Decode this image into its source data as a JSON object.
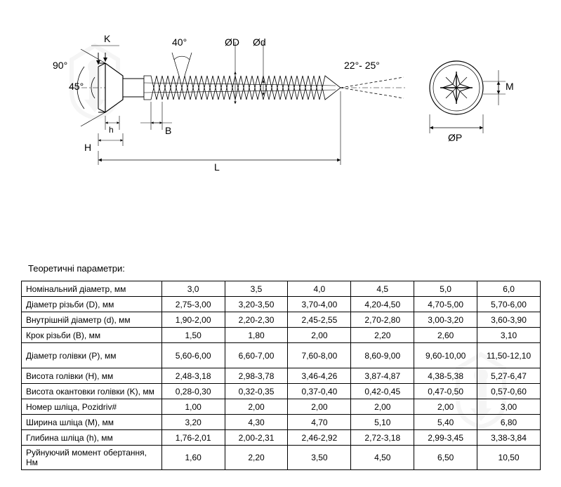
{
  "diagram": {
    "labels": {
      "angle_head": "90°",
      "angle_chamfer": "45°",
      "K": "K",
      "angle_thread": "40°",
      "OD": "ØD",
      "od": "Ød",
      "tip_angle": "22°- 25°",
      "M": "M",
      "OP": "ØP",
      "h": "h",
      "H": "H",
      "B": "B",
      "L": "L"
    },
    "colors": {
      "line": "#000000",
      "hatch": "#777777",
      "bg": "#ffffff"
    }
  },
  "table": {
    "title": "Теоретичні параметри:",
    "rows": [
      {
        "label": "Номінальний діаметр, мм",
        "values": [
          "3,0",
          "3,5",
          "4,0",
          "4,5",
          "5,0",
          "6,0"
        ]
      },
      {
        "label": "Діаметр різьби (D), мм",
        "values": [
          "2,75-3,00",
          "3,20-3,50",
          "3,70-4,00",
          "4,20-4,50",
          "4,70-5,00",
          "5,70-6,00"
        ]
      },
      {
        "label": "Внутрішній діаметр (d), мм",
        "values": [
          "1,90-2,00",
          "2,20-2,30",
          "2,45-2,55",
          "2,70-2,80",
          "3,00-3,20",
          "3,60-3,90"
        ]
      },
      {
        "label": "Крок різьби (B), мм",
        "values": [
          "1,50",
          "1,80",
          "2,00",
          "2,20",
          "2,60",
          "3,10"
        ]
      },
      {
        "label": "Діаметр голівки (P), мм",
        "values": [
          "5,60-6,00",
          "6,60-7,00",
          "7,60-8,00",
          "8,60-9,00",
          "9,60-10,00",
          "11,50-12,10"
        ],
        "tall": true
      },
      {
        "label": "Висота голівки (H), мм",
        "values": [
          "2,48-3,18",
          "2,98-3,78",
          "3,46-4,26",
          "3,87-4,87",
          "4,38-5,38",
          "5,27-6,47"
        ]
      },
      {
        "label": "Висота окантовки голівки (K), мм",
        "values": [
          "0,28-0,30",
          "0,32-0,35",
          "0,37-0,40",
          "0,42-0,45",
          "0,47-0,50",
          "0,57-0,60"
        ]
      },
      {
        "label": "Номер шліца, Pozidriv#",
        "values": [
          "1,00",
          "2,00",
          "2,00",
          "2,00",
          "2,00",
          "3,00"
        ]
      },
      {
        "label": "Ширина шліца (M), мм",
        "values": [
          "3,20",
          "4,30",
          "4,70",
          "5,10",
          "5,40",
          "6,80"
        ]
      },
      {
        "label": "Глибина шліца (h), мм",
        "values": [
          "1,76-2,01",
          "2,00-2,31",
          "2,46-2,92",
          "2,72-3,18",
          "2,99-3,45",
          "3,38-3,84"
        ]
      },
      {
        "label": "Руйнуючий момент обертання, Нм",
        "values": [
          "1,60",
          "2,20",
          "3,50",
          "4,50",
          "6,50",
          "10,50"
        ]
      }
    ]
  }
}
